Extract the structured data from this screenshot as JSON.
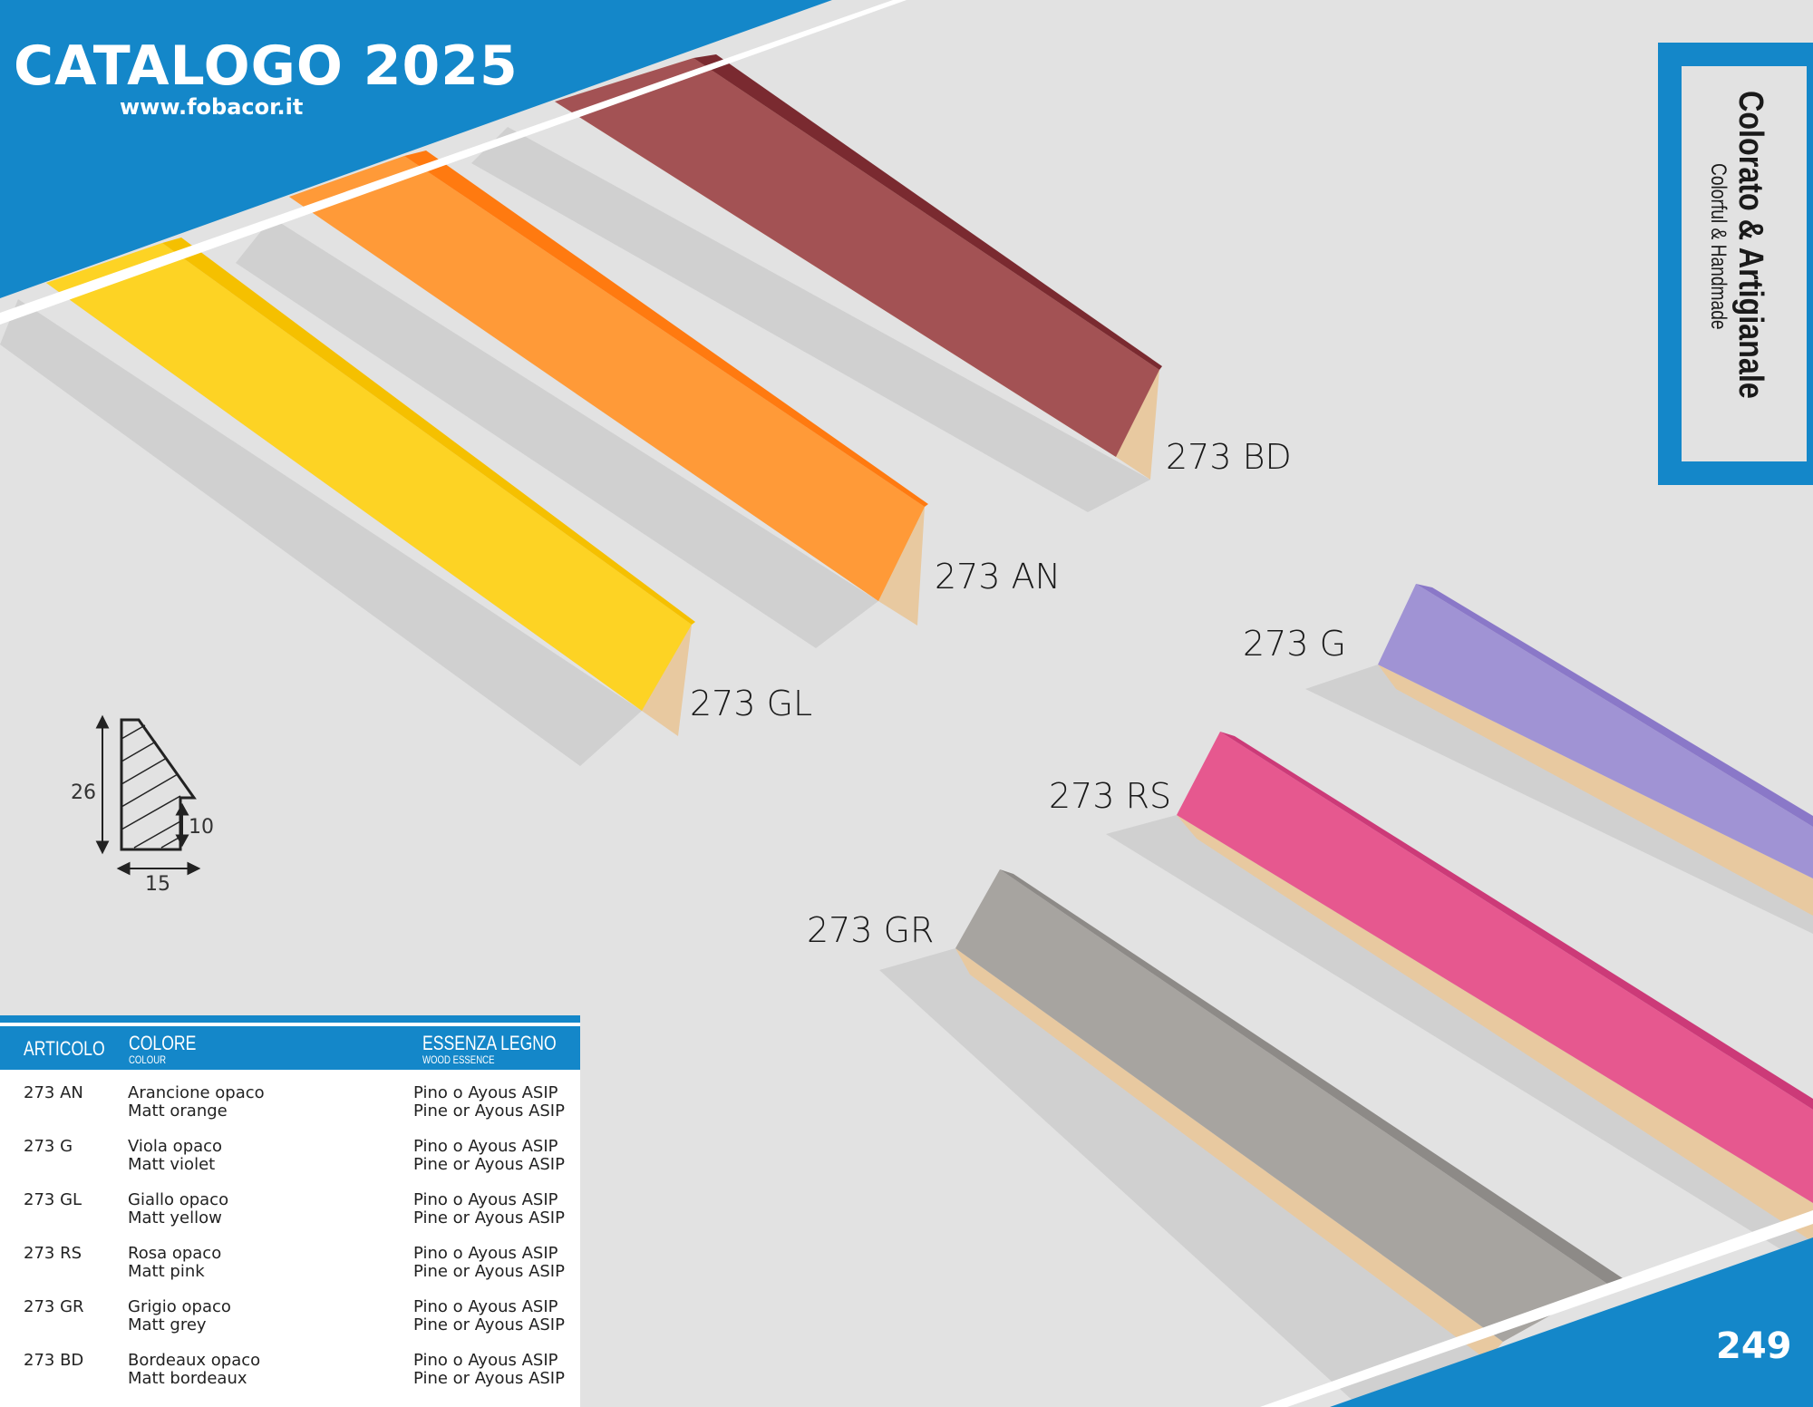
{
  "header": {
    "title": "CATALOGO 2025",
    "url": "www.fobacor.it"
  },
  "sidebar": {
    "title": "Colorato & Artigianale",
    "subtitle": "Colorful & Handmade"
  },
  "page_number": "249",
  "colors": {
    "brand": "#1487c9",
    "BD": "#a35254",
    "AN": "#ff9a38",
    "GL": "#fdd324",
    "G": "#a093d4",
    "RS": "#e6588f",
    "GR": "#a7a4a0"
  },
  "products": [
    {
      "code": "273 BD"
    },
    {
      "code": "273 AN"
    },
    {
      "code": "273 GL"
    },
    {
      "code": "273 G"
    },
    {
      "code": "273 RS"
    },
    {
      "code": "273 GR"
    }
  ],
  "profile": {
    "height": "26",
    "width": "15",
    "rebate": "10"
  },
  "table": {
    "headers": {
      "article": "ARTICOLO",
      "colour": "COLORE",
      "colour_en": "COLOUR",
      "wood": "ESSENZA LEGNO",
      "wood_en": "WOOD ESSENCE"
    },
    "rows": [
      {
        "code": "273 AN",
        "it": "Arancione opaco",
        "en": "Matt orange",
        "wood_it": "Pino o Ayous ASIP",
        "wood_en": "Pine or Ayous ASIP"
      },
      {
        "code": "273 G",
        "it": "Viola opaco",
        "en": "Matt violet",
        "wood_it": "Pino o Ayous ASIP",
        "wood_en": "Pine or Ayous ASIP"
      },
      {
        "code": "273 GL",
        "it": "Giallo opaco",
        "en": "Matt yellow",
        "wood_it": "Pino o Ayous ASIP",
        "wood_en": "Pine or Ayous ASIP"
      },
      {
        "code": "273 RS",
        "it": "Rosa opaco",
        "en": "Matt pink",
        "wood_it": "Pino o Ayous ASIP",
        "wood_en": "Pine or Ayous ASIP"
      },
      {
        "code": "273 GR",
        "it": "Grigio opaco",
        "en": "Matt grey",
        "wood_it": "Pino o Ayous ASIP",
        "wood_en": "Pine or Ayous ASIP"
      },
      {
        "code": "273 BD",
        "it": "Bordeaux opaco",
        "en": "Matt bordeaux",
        "wood_it": "Pino o Ayous ASIP",
        "wood_en": "Pine or Ayous ASIP"
      }
    ]
  }
}
